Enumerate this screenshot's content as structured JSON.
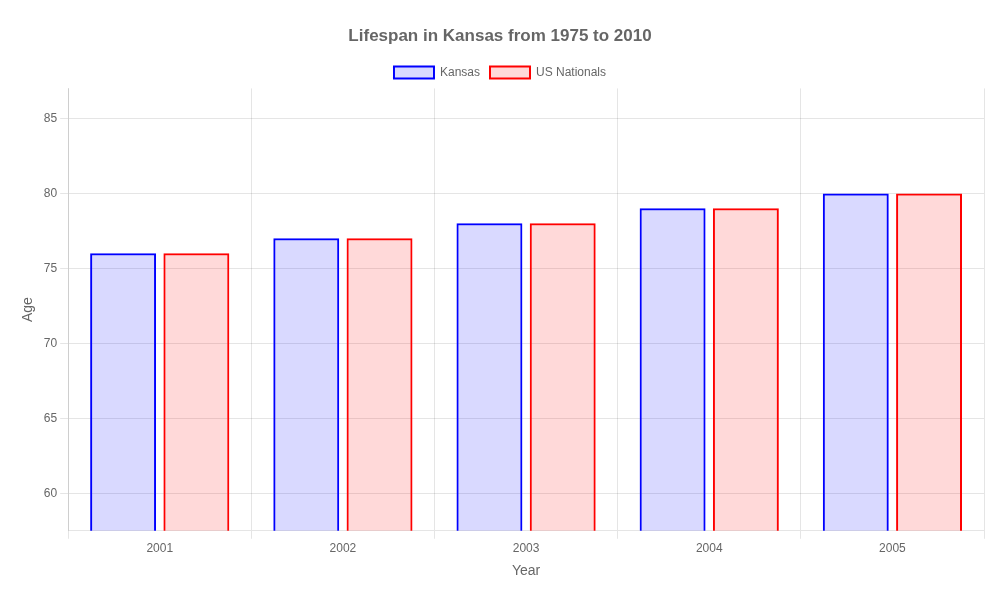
{
  "chart_data": {
    "type": "bar",
    "title": "Lifespan in Kansas from 1975 to 2010",
    "xlabel": "Year",
    "ylabel": "Age",
    "categories": [
      "2001",
      "2002",
      "2003",
      "2004",
      "2005"
    ],
    "series": [
      {
        "name": "Kansas",
        "color": "#0000ff",
        "values": [
          76.0,
          77.0,
          78.0,
          79.0,
          80.0
        ]
      },
      {
        "name": "US Nationals",
        "color": "#ff0000",
        "values": [
          76.0,
          77.0,
          78.0,
          79.0,
          80.0
        ]
      }
    ],
    "ylim": [
      57.5,
      87
    ],
    "yticks": [
      60,
      65,
      70,
      75,
      80,
      85
    ],
    "grid": true,
    "legend": "top"
  }
}
